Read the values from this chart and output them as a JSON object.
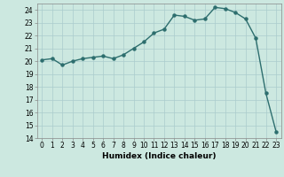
{
  "x": [
    0,
    1,
    2,
    3,
    4,
    5,
    6,
    7,
    8,
    9,
    10,
    11,
    12,
    13,
    14,
    15,
    16,
    17,
    18,
    19,
    20,
    21,
    22,
    23
  ],
  "y": [
    20.1,
    20.2,
    19.7,
    20.0,
    20.2,
    20.3,
    20.4,
    20.2,
    20.5,
    21.0,
    21.5,
    22.2,
    22.5,
    23.6,
    23.5,
    23.2,
    23.3,
    24.2,
    24.1,
    23.8,
    23.3,
    21.8,
    17.5,
    14.5
  ],
  "line_color": "#2d6e6e",
  "marker_color": "#2d6e6e",
  "bg_color": "#cce8e0",
  "grid_color": "#aacccc",
  "xlabel": "Humidex (Indice chaleur)",
  "ylim": [
    14,
    24.5
  ],
  "xlim": [
    -0.5,
    23.5
  ],
  "yticks": [
    14,
    15,
    16,
    17,
    18,
    19,
    20,
    21,
    22,
    23,
    24
  ],
  "xticks": [
    0,
    1,
    2,
    3,
    4,
    5,
    6,
    7,
    8,
    9,
    10,
    11,
    12,
    13,
    14,
    15,
    16,
    17,
    18,
    19,
    20,
    21,
    22,
    23
  ],
  "xlabel_fontsize": 6.5,
  "tick_fontsize": 5.5,
  "linewidth": 1.0,
  "markersize": 2.2
}
